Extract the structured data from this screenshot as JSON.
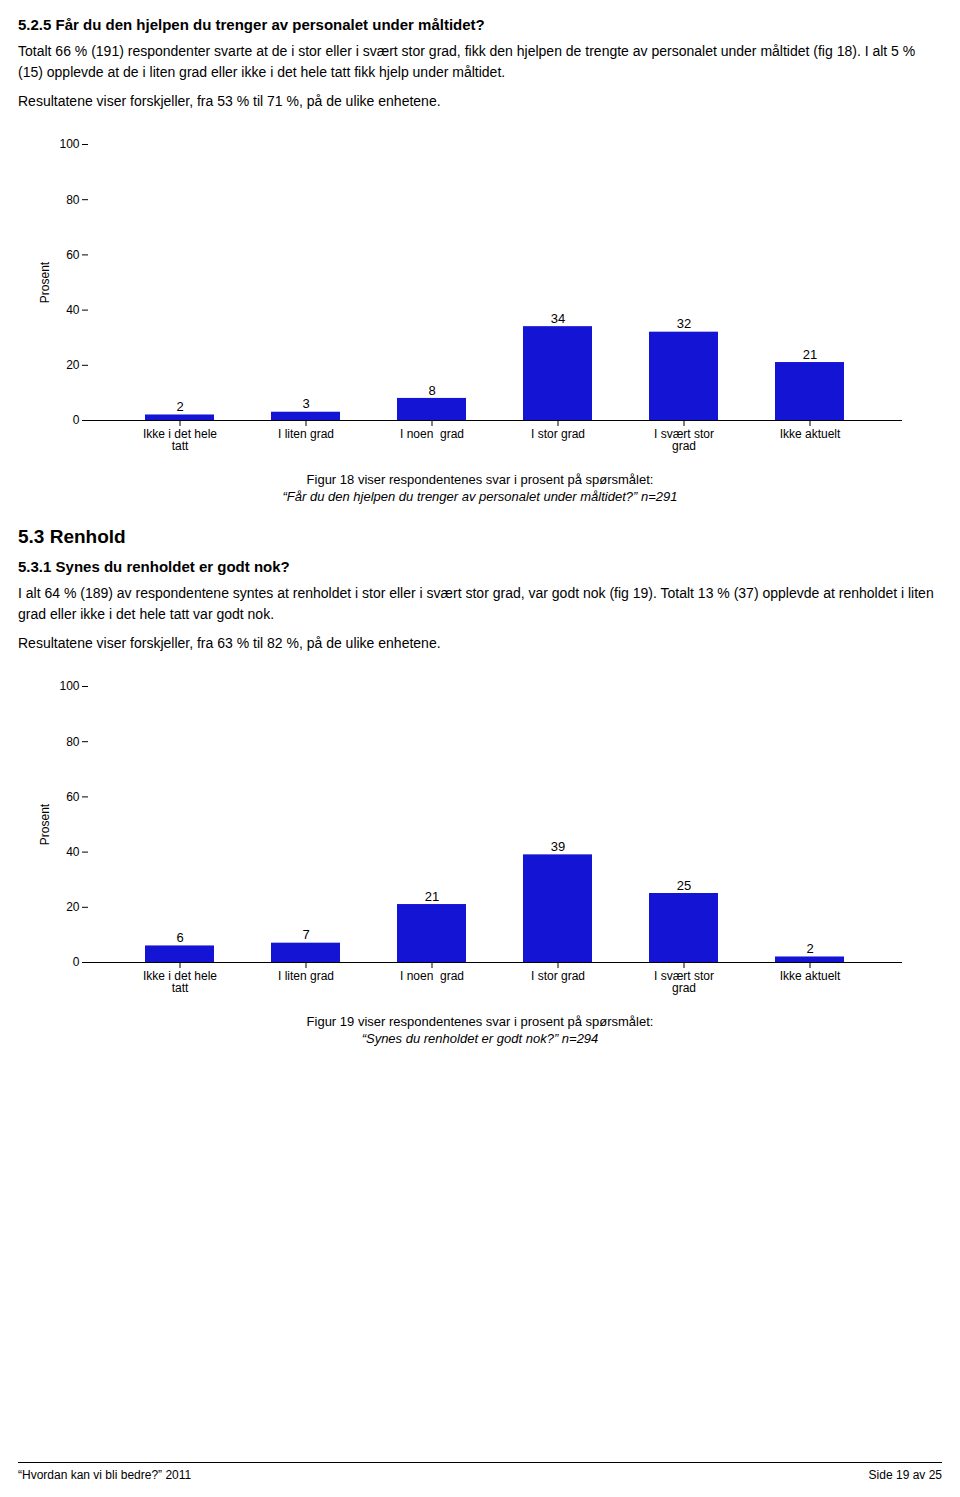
{
  "chart_data": [
    {
      "type": "bar",
      "title": "5.2.5 Får du den hjelpen du trenger av personalet under måltidet?",
      "annotations": [
        "Totalt 66 % (191) respondenter svarte at de i stor eller i svært stor grad, fikk den hjelpen de trengte av personalet under måltidet (fig 18). I alt 5 % (15) opplevde at de i liten grad eller ikke i det hele tatt fikk hjelp under måltidet.",
        "Resultatene viser forskjeller, fra 53 % til 71 %, på de ulike enhetene."
      ],
      "categories": [
        "Ikke i det hele\ntatt",
        "I liten grad",
        "I noen  grad",
        "I stor grad",
        "I svært stor\ngrad",
        "Ikke aktuelt"
      ],
      "values": [
        2,
        3,
        8,
        34,
        32,
        21
      ],
      "color": "#1414d4",
      "ylabel": "Prosent",
      "ylim": [
        0,
        100
      ],
      "yticks": [
        0,
        20,
        40,
        60,
        80,
        100
      ],
      "grid": false,
      "data_labels": true,
      "caption": [
        "Figur 18 viser respondentenes svar i prosent på spørsmålet:",
        "“Får du den hjelpen du trenger av personalet under måltidet?” n=291"
      ]
    },
    {
      "type": "bar",
      "section": "5.3 Renhold",
      "title": "5.3.1 Synes du renholdet er godt nok?",
      "annotations": [
        "I alt 64 % (189) av respondentene syntes at renholdet i stor eller i svært stor grad, var godt nok (fig 19). Totalt 13 % (37) opplevde at renholdet i liten grad eller ikke i det hele tatt var godt nok.",
        "Resultatene viser forskjeller, fra 63 % til 82 %, på de ulike enhetene."
      ],
      "categories": [
        "Ikke i det hele\ntatt",
        "I liten grad",
        "I noen  grad",
        "I stor grad",
        "I svært stor\ngrad",
        "Ikke aktuelt"
      ],
      "values": [
        6,
        7,
        21,
        39,
        25,
        2
      ],
      "color": "#1414d4",
      "ylabel": "Prosent",
      "ylim": [
        0,
        100
      ],
      "yticks": [
        0,
        20,
        40,
        60,
        80,
        100
      ],
      "grid": false,
      "data_labels": true,
      "caption": [
        "Figur 19 viser respondentenes svar i prosent på spørsmålet:",
        "“Synes du renholdet er godt nok?” n=294"
      ]
    }
  ],
  "footer": {
    "left": "“Hvordan kan vi bli bedre?” 2011",
    "right": "Side 19 av 25"
  }
}
